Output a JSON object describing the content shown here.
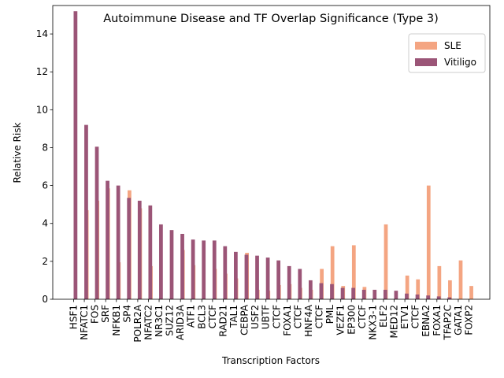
{
  "chart_data": {
    "type": "bar",
    "title": "Autoimmune Disease and TF Overlap Significance (Type 3)",
    "xlabel": "Transcription Factors",
    "ylabel": "Relative Risk",
    "ylim": [
      0,
      15.5
    ],
    "yticks": [
      0,
      2,
      4,
      6,
      8,
      10,
      12,
      14
    ],
    "grid": false,
    "legend_position": "top-right",
    "categories": [
      "HSF1",
      "NFATC1",
      "FOS",
      "SRF",
      "NFKB1",
      "SP4",
      "POLR2A",
      "NFATC2",
      "NR3C1",
      "SUZ12",
      "ARID3A",
      "ATF1",
      "BCL3",
      "CTCF",
      "RAD21",
      "TAL1",
      "CEBPA",
      "USF2",
      "UBTF",
      "CTCF",
      "FOXA1",
      "CTCF",
      "HNF4A",
      "CTCF",
      "PML",
      "VEZF1",
      "EP300",
      "CTCF",
      "NKX3-1",
      "ELF2",
      "MED12",
      "ETV1",
      "CTCF",
      "EBNA2",
      "FOXA1",
      "TFAP2C",
      "GATA1",
      "FOXP2"
    ],
    "series": [
      {
        "name": "SLE",
        "color": "#f4a582",
        "values": [
          0,
          4.7,
          5.2,
          5.85,
          1.95,
          5.75,
          4.8,
          1.75,
          0,
          0,
          2.6,
          1.8,
          0,
          1.6,
          1.35,
          1.1,
          2.45,
          0.5,
          0.45,
          0.75,
          0.8,
          0.6,
          0.5,
          1.6,
          2.8,
          0.7,
          2.85,
          0.65,
          0,
          3.95,
          0,
          1.25,
          1.05,
          6.0,
          1.75,
          1.0,
          2.05,
          0.7
        ]
      },
      {
        "name": "Vitiligo",
        "color": "#9b5577",
        "values": [
          15.2,
          9.2,
          8.05,
          6.25,
          6.0,
          5.35,
          5.2,
          4.95,
          3.95,
          3.65,
          3.45,
          3.15,
          3.1,
          3.1,
          2.8,
          2.5,
          2.35,
          2.3,
          2.2,
          2.05,
          1.75,
          1.6,
          1.0,
          0.85,
          0.8,
          0.6,
          0.6,
          0.5,
          0.5,
          0.5,
          0.45,
          0.3,
          0.25,
          0.2,
          0.15,
          0.1,
          0,
          0
        ]
      }
    ]
  }
}
